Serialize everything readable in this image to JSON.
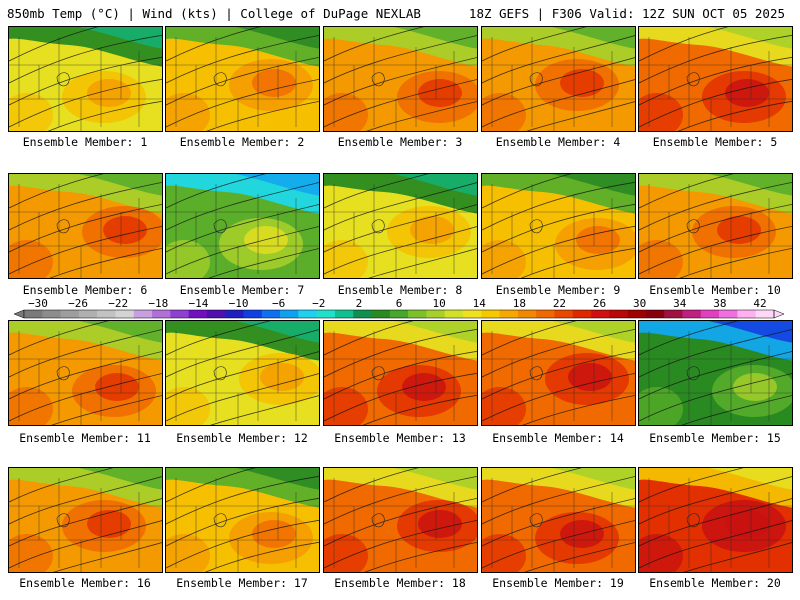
{
  "header": {
    "left": "850mb Temp (°C) | Wind (kts) | College of DuPage NEXLAB",
    "right": "18Z GEFS | F306 Valid: 12Z SUN OCT 05 2025"
  },
  "members": [
    {
      "label": "Ensemble Member: 1",
      "warmth": -1
    },
    {
      "label": "Ensemble Member: 2",
      "warmth": 0
    },
    {
      "label": "Ensemble Member: 3",
      "warmth": 1
    },
    {
      "label": "Ensemble Member: 4",
      "warmth": 1
    },
    {
      "label": "Ensemble Member: 5",
      "warmth": 2
    },
    {
      "label": "Ensemble Member: 6",
      "warmth": 1
    },
    {
      "label": "Ensemble Member: 7",
      "warmth": -3
    },
    {
      "label": "Ensemble Member: 8",
      "warmth": -1
    },
    {
      "label": "Ensemble Member: 9",
      "warmth": 0
    },
    {
      "label": "Ensemble Member: 10",
      "warmth": 1
    },
    {
      "label": "Ensemble Member: 11",
      "warmth": 1
    },
    {
      "label": "Ensemble Member: 12",
      "warmth": -1
    },
    {
      "label": "Ensemble Member: 13",
      "warmth": 2
    },
    {
      "label": "Ensemble Member: 14",
      "warmth": 2
    },
    {
      "label": "Ensemble Member: 15",
      "warmth": -4
    },
    {
      "label": "Ensemble Member: 16",
      "warmth": 1
    },
    {
      "label": "Ensemble Member: 17",
      "warmth": 0
    },
    {
      "label": "Ensemble Member: 18",
      "warmth": 2
    },
    {
      "label": "Ensemble Member: 19",
      "warmth": 2
    },
    {
      "label": "Ensemble Member: 20",
      "warmth": 3
    }
  ],
  "colorbar": {
    "tick_labels": [
      "−30",
      "−26",
      "−22",
      "−18",
      "−14",
      "−10",
      "−6",
      "−2",
      "2",
      "6",
      "10",
      "14",
      "18",
      "22",
      "26",
      "30",
      "34",
      "38",
      "42"
    ],
    "colors": [
      "#7a7a7a",
      "#8c8c8c",
      "#9e9e9e",
      "#b0b0b0",
      "#c2c2c2",
      "#d4d4d4",
      "#c8a0e0",
      "#b070d8",
      "#9040d0",
      "#7010c0",
      "#5010b0",
      "#2020c0",
      "#1040e0",
      "#1070f0",
      "#10a0f0",
      "#20d0f0",
      "#20e0c8",
      "#10c090",
      "#109050",
      "#2a8a22",
      "#48a62a",
      "#7cc02a",
      "#a8d02a",
      "#d2e02a",
      "#f0e020",
      "#f6c800",
      "#f6a800",
      "#f08800",
      "#f06800",
      "#e84800",
      "#e02800",
      "#d01010",
      "#b80808",
      "#a00000",
      "#880010",
      "#a01040",
      "#c02080",
      "#e040c0",
      "#f070e0",
      "#ffb0f0",
      "#ffd8f8"
    ]
  }
}
